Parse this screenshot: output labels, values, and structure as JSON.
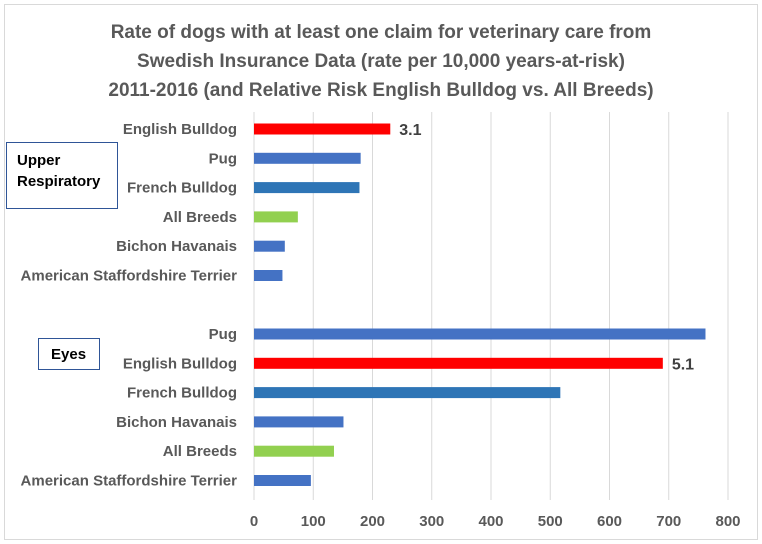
{
  "chart_data": {
    "type": "bar",
    "orientation": "horizontal",
    "title": [
      "Rate of dogs with at least one claim for veterinary care from",
      "Swedish Insurance Data (rate per 10,000 years-at-risk)",
      "2011-2016 (and Relative Risk English Bulldog vs. All Breeds)"
    ],
    "xlim": [
      0,
      800
    ],
    "xticks": [
      0,
      100,
      200,
      300,
      400,
      500,
      600,
      700,
      800
    ],
    "xlabel": "",
    "ylabel": "",
    "grid": true,
    "groups": [
      {
        "name": "Upper Respiratory",
        "label_lines": [
          "Upper",
          "Respiratory"
        ],
        "bars": [
          {
            "category": "English Bulldog",
            "value": 230,
            "color": "#ff0000",
            "annotation": "3.1"
          },
          {
            "category": "Pug",
            "value": 180,
            "color": "#4472c4"
          },
          {
            "category": "French Bulldog",
            "value": 178,
            "color": "#2e75b6"
          },
          {
            "category": "All Breeds",
            "value": 74,
            "color": "#92d050"
          },
          {
            "category": "Bichon Havanais",
            "value": 52,
            "color": "#4472c4"
          },
          {
            "category": "American Staffordshire Terrier",
            "value": 48,
            "color": "#4472c4"
          }
        ]
      },
      {
        "name": "Eyes",
        "label_lines": [
          "Eyes"
        ],
        "bars": [
          {
            "category": "Pug",
            "value": 762,
            "color": "#4472c4"
          },
          {
            "category": "English Bulldog",
            "value": 690,
            "color": "#ff0000",
            "annotation": "5.1"
          },
          {
            "category": "French Bulldog",
            "value": 517,
            "color": "#2e75b6"
          },
          {
            "category": "Bichon Havanais",
            "value": 151,
            "color": "#4472c4"
          },
          {
            "category": "All Breeds",
            "value": 135,
            "color": "#92d050"
          },
          {
            "category": "American Staffordshire Terrier",
            "value": 96,
            "color": "#4472c4"
          }
        ]
      }
    ]
  }
}
